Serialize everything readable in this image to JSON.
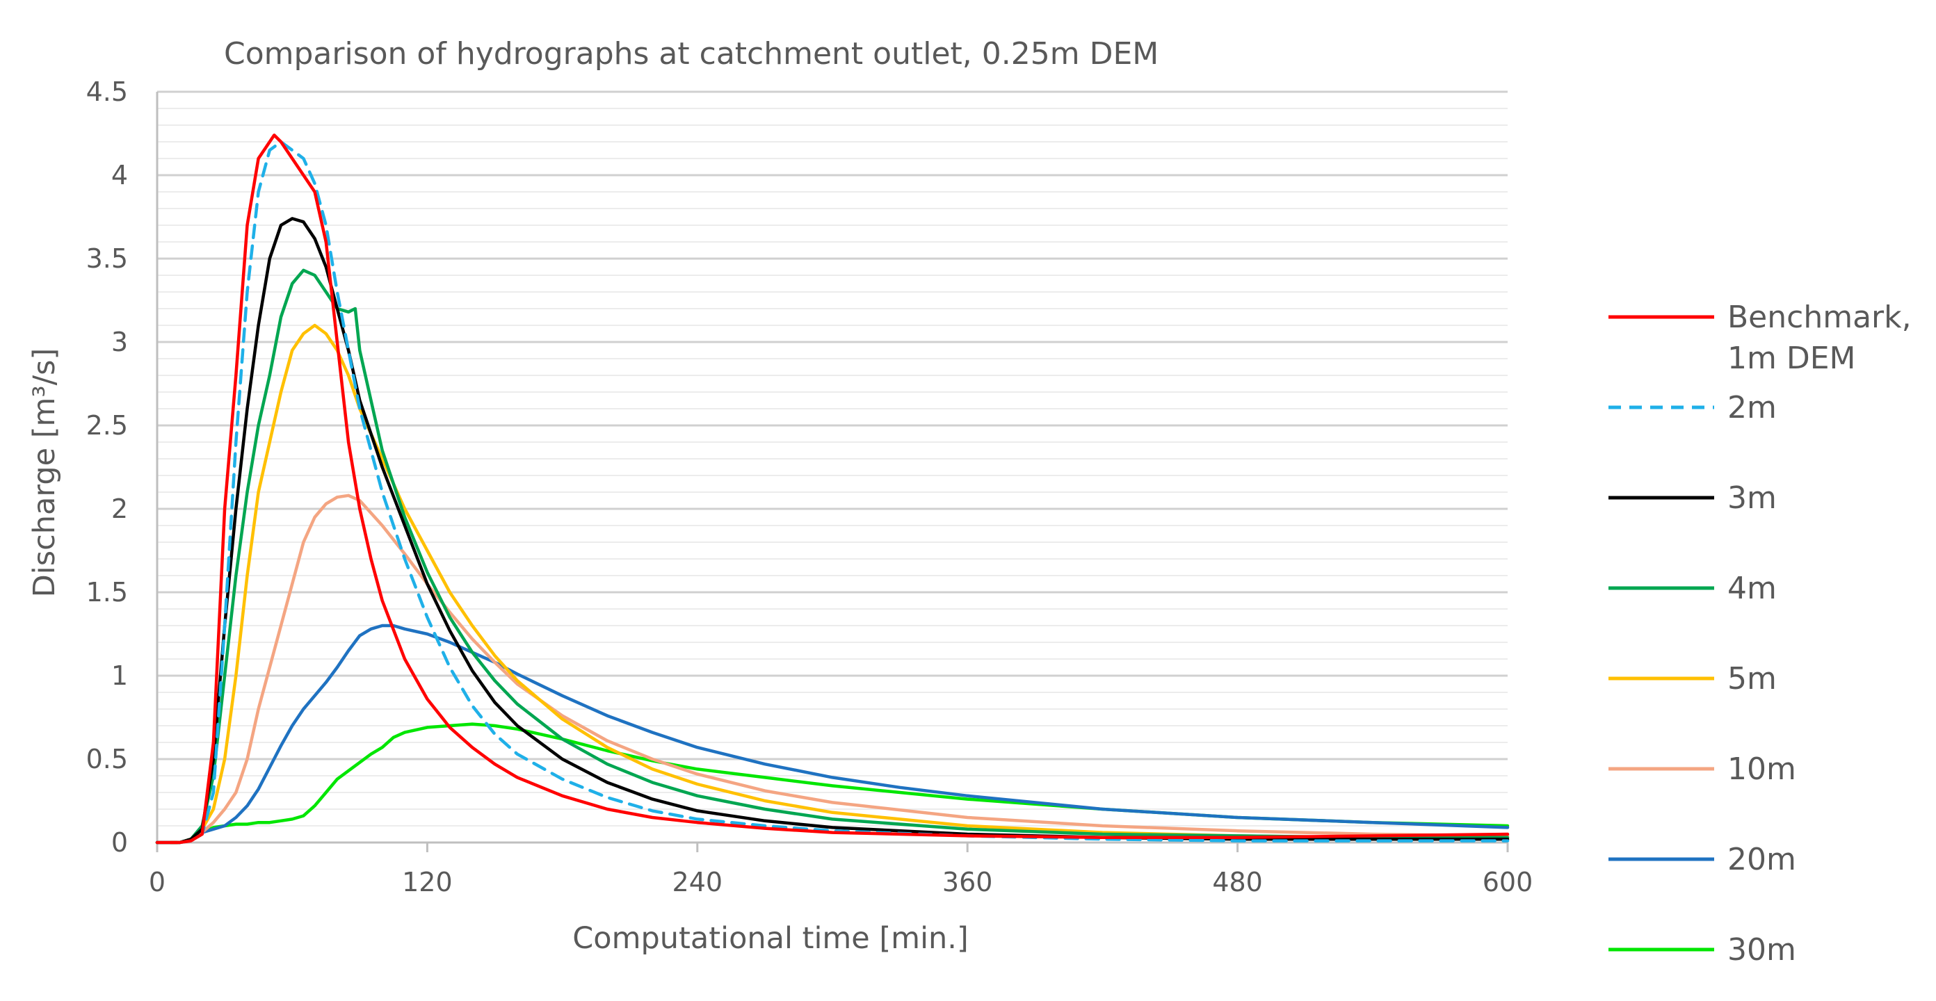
{
  "chart_data": {
    "type": "line",
    "title": "Comparison of hydrographs at catchment outlet, 0.25m DEM",
    "xlabel": "Computational time [min.]",
    "ylabel": "Discharge [m³/s]",
    "xlim": [
      0,
      600
    ],
    "ylim": [
      0,
      4.5
    ],
    "xticks": [
      "0",
      "120",
      "240",
      "360",
      "480",
      "600"
    ],
    "yticks": [
      "0",
      "0.5",
      "1",
      "1.5",
      "2",
      "2.5",
      "3",
      "3.5",
      "4",
      "4.5"
    ],
    "grid": "horizontal major and minor",
    "legend": "right",
    "series": [
      {
        "name": "Benchmark, 1m DEM",
        "color": "#FF0000",
        "dash": "solid",
        "points": [
          [
            0,
            0
          ],
          [
            10,
            0
          ],
          [
            15,
            0.01
          ],
          [
            20,
            0.05
          ],
          [
            25,
            0.6
          ],
          [
            30,
            2.0
          ],
          [
            35,
            2.8
          ],
          [
            40,
            3.7
          ],
          [
            45,
            4.1
          ],
          [
            50,
            4.2
          ],
          [
            52,
            4.24
          ],
          [
            55,
            4.2
          ],
          [
            60,
            4.1
          ],
          [
            65,
            4.0
          ],
          [
            70,
            3.9
          ],
          [
            75,
            3.6
          ],
          [
            80,
            3.0
          ],
          [
            85,
            2.4
          ],
          [
            90,
            2.0
          ],
          [
            95,
            1.7
          ],
          [
            100,
            1.45
          ],
          [
            110,
            1.1
          ],
          [
            120,
            0.86
          ],
          [
            130,
            0.69
          ],
          [
            140,
            0.57
          ],
          [
            150,
            0.47
          ],
          [
            160,
            0.39
          ],
          [
            180,
            0.28
          ],
          [
            200,
            0.2
          ],
          [
            220,
            0.15
          ],
          [
            240,
            0.12
          ],
          [
            270,
            0.085
          ],
          [
            300,
            0.06
          ],
          [
            360,
            0.04
          ],
          [
            420,
            0.03
          ],
          [
            480,
            0.03
          ],
          [
            540,
            0.04
          ],
          [
            600,
            0.05
          ]
        ]
      },
      {
        "name": "2m",
        "color": "#1FB0E8",
        "dash": "dashed",
        "points": [
          [
            0,
            0
          ],
          [
            10,
            0
          ],
          [
            15,
            0.01
          ],
          [
            20,
            0.05
          ],
          [
            25,
            0.3
          ],
          [
            30,
            1.3
          ],
          [
            35,
            2.4
          ],
          [
            40,
            3.3
          ],
          [
            45,
            3.9
          ],
          [
            50,
            4.15
          ],
          [
            55,
            4.2
          ],
          [
            60,
            4.15
          ],
          [
            65,
            4.1
          ],
          [
            70,
            3.95
          ],
          [
            75,
            3.7
          ],
          [
            80,
            3.3
          ],
          [
            90,
            2.6
          ],
          [
            100,
            2.1
          ],
          [
            110,
            1.7
          ],
          [
            120,
            1.35
          ],
          [
            130,
            1.05
          ],
          [
            140,
            0.82
          ],
          [
            150,
            0.65
          ],
          [
            160,
            0.53
          ],
          [
            180,
            0.38
          ],
          [
            200,
            0.27
          ],
          [
            220,
            0.19
          ],
          [
            240,
            0.14
          ],
          [
            270,
            0.1
          ],
          [
            300,
            0.07
          ],
          [
            360,
            0.04
          ],
          [
            420,
            0.02
          ],
          [
            480,
            0.01
          ],
          [
            540,
            0.01
          ],
          [
            600,
            0.01
          ]
        ]
      },
      {
        "name": "3m",
        "color": "#000000",
        "dash": "solid",
        "points": [
          [
            0,
            0
          ],
          [
            10,
            0
          ],
          [
            15,
            0.02
          ],
          [
            20,
            0.08
          ],
          [
            25,
            0.5
          ],
          [
            30,
            1.3
          ],
          [
            35,
            2.0
          ],
          [
            40,
            2.6
          ],
          [
            45,
            3.1
          ],
          [
            50,
            3.5
          ],
          [
            55,
            3.7
          ],
          [
            60,
            3.74
          ],
          [
            65,
            3.72
          ],
          [
            70,
            3.62
          ],
          [
            75,
            3.45
          ],
          [
            80,
            3.2
          ],
          [
            85,
            2.95
          ],
          [
            90,
            2.65
          ],
          [
            100,
            2.25
          ],
          [
            110,
            1.9
          ],
          [
            120,
            1.55
          ],
          [
            130,
            1.27
          ],
          [
            140,
            1.03
          ],
          [
            150,
            0.84
          ],
          [
            160,
            0.7
          ],
          [
            180,
            0.5
          ],
          [
            200,
            0.36
          ],
          [
            220,
            0.26
          ],
          [
            240,
            0.19
          ],
          [
            270,
            0.13
          ],
          [
            300,
            0.09
          ],
          [
            360,
            0.05
          ],
          [
            420,
            0.03
          ],
          [
            480,
            0.02
          ],
          [
            540,
            0.02
          ],
          [
            600,
            0.02
          ]
        ]
      },
      {
        "name": "4m",
        "color": "#00A651",
        "dash": "solid",
        "points": [
          [
            0,
            0
          ],
          [
            10,
            0
          ],
          [
            15,
            0.02
          ],
          [
            20,
            0.1
          ],
          [
            25,
            0.4
          ],
          [
            30,
            1.0
          ],
          [
            35,
            1.6
          ],
          [
            40,
            2.1
          ],
          [
            45,
            2.5
          ],
          [
            50,
            2.8
          ],
          [
            55,
            3.15
          ],
          [
            60,
            3.35
          ],
          [
            65,
            3.43
          ],
          [
            70,
            3.4
          ],
          [
            75,
            3.3
          ],
          [
            80,
            3.2
          ],
          [
            85,
            3.18
          ],
          [
            88,
            3.2
          ],
          [
            90,
            2.95
          ],
          [
            95,
            2.65
          ],
          [
            100,
            2.35
          ],
          [
            110,
            1.95
          ],
          [
            120,
            1.62
          ],
          [
            130,
            1.35
          ],
          [
            140,
            1.14
          ],
          [
            150,
            0.97
          ],
          [
            160,
            0.83
          ],
          [
            180,
            0.62
          ],
          [
            200,
            0.47
          ],
          [
            220,
            0.36
          ],
          [
            240,
            0.28
          ],
          [
            270,
            0.2
          ],
          [
            300,
            0.14
          ],
          [
            360,
            0.08
          ],
          [
            420,
            0.05
          ],
          [
            480,
            0.04
          ],
          [
            540,
            0.03
          ],
          [
            600,
            0.03
          ]
        ]
      },
      {
        "name": "5m",
        "color": "#FFC000",
        "dash": "solid",
        "points": [
          [
            0,
            0
          ],
          [
            10,
            0
          ],
          [
            15,
            0.02
          ],
          [
            20,
            0.08
          ],
          [
            25,
            0.2
          ],
          [
            30,
            0.5
          ],
          [
            35,
            1.0
          ],
          [
            40,
            1.6
          ],
          [
            45,
            2.1
          ],
          [
            50,
            2.4
          ],
          [
            55,
            2.7
          ],
          [
            60,
            2.95
          ],
          [
            65,
            3.05
          ],
          [
            70,
            3.1
          ],
          [
            75,
            3.05
          ],
          [
            80,
            2.95
          ],
          [
            85,
            2.8
          ],
          [
            90,
            2.6
          ],
          [
            100,
            2.3
          ],
          [
            110,
            2.0
          ],
          [
            120,
            1.75
          ],
          [
            130,
            1.5
          ],
          [
            140,
            1.3
          ],
          [
            150,
            1.12
          ],
          [
            160,
            0.97
          ],
          [
            180,
            0.74
          ],
          [
            200,
            0.57
          ],
          [
            220,
            0.44
          ],
          [
            240,
            0.35
          ],
          [
            270,
            0.25
          ],
          [
            300,
            0.18
          ],
          [
            360,
            0.1
          ],
          [
            420,
            0.06
          ],
          [
            480,
            0.04
          ],
          [
            540,
            0.03
          ],
          [
            600,
            0.03
          ]
        ]
      },
      {
        "name": "10m",
        "color": "#F4A582",
        "dash": "solid",
        "points": [
          [
            0,
            0
          ],
          [
            10,
            0
          ],
          [
            15,
            0.02
          ],
          [
            20,
            0.06
          ],
          [
            25,
            0.12
          ],
          [
            30,
            0.2
          ],
          [
            35,
            0.3
          ],
          [
            40,
            0.5
          ],
          [
            45,
            0.8
          ],
          [
            50,
            1.05
          ],
          [
            55,
            1.3
          ],
          [
            60,
            1.55
          ],
          [
            65,
            1.8
          ],
          [
            70,
            1.95
          ],
          [
            75,
            2.03
          ],
          [
            80,
            2.07
          ],
          [
            85,
            2.08
          ],
          [
            90,
            2.05
          ],
          [
            100,
            1.9
          ],
          [
            110,
            1.73
          ],
          [
            120,
            1.55
          ],
          [
            130,
            1.38
          ],
          [
            140,
            1.22
          ],
          [
            150,
            1.08
          ],
          [
            160,
            0.95
          ],
          [
            180,
            0.76
          ],
          [
            200,
            0.61
          ],
          [
            220,
            0.5
          ],
          [
            240,
            0.41
          ],
          [
            270,
            0.31
          ],
          [
            300,
            0.24
          ],
          [
            360,
            0.15
          ],
          [
            420,
            0.1
          ],
          [
            480,
            0.07
          ],
          [
            540,
            0.05
          ],
          [
            600,
            0.04
          ]
        ]
      },
      {
        "name": "20m",
        "color": "#1F72C1",
        "dash": "solid",
        "points": [
          [
            0,
            0
          ],
          [
            10,
            0
          ],
          [
            15,
            0.02
          ],
          [
            20,
            0.06
          ],
          [
            25,
            0.08
          ],
          [
            30,
            0.1
          ],
          [
            35,
            0.15
          ],
          [
            40,
            0.22
          ],
          [
            45,
            0.32
          ],
          [
            50,
            0.45
          ],
          [
            55,
            0.58
          ],
          [
            60,
            0.7
          ],
          [
            65,
            0.8
          ],
          [
            70,
            0.88
          ],
          [
            75,
            0.96
          ],
          [
            80,
            1.05
          ],
          [
            85,
            1.15
          ],
          [
            90,
            1.24
          ],
          [
            95,
            1.28
          ],
          [
            100,
            1.3
          ],
          [
            105,
            1.3
          ],
          [
            110,
            1.28
          ],
          [
            120,
            1.25
          ],
          [
            130,
            1.2
          ],
          [
            140,
            1.14
          ],
          [
            150,
            1.08
          ],
          [
            160,
            1.01
          ],
          [
            180,
            0.88
          ],
          [
            200,
            0.76
          ],
          [
            220,
            0.66
          ],
          [
            240,
            0.57
          ],
          [
            270,
            0.47
          ],
          [
            300,
            0.39
          ],
          [
            330,
            0.33
          ],
          [
            360,
            0.28
          ],
          [
            420,
            0.2
          ],
          [
            480,
            0.15
          ],
          [
            540,
            0.12
          ],
          [
            600,
            0.09
          ]
        ]
      },
      {
        "name": "30m",
        "color": "#00E600",
        "dash": "solid",
        "points": [
          [
            0,
            0
          ],
          [
            10,
            0
          ],
          [
            15,
            0.02
          ],
          [
            20,
            0.06
          ],
          [
            25,
            0.09
          ],
          [
            30,
            0.1
          ],
          [
            35,
            0.11
          ],
          [
            40,
            0.11
          ],
          [
            45,
            0.12
          ],
          [
            50,
            0.12
          ],
          [
            55,
            0.13
          ],
          [
            60,
            0.14
          ],
          [
            65,
            0.16
          ],
          [
            70,
            0.22
          ],
          [
            75,
            0.3
          ],
          [
            80,
            0.38
          ],
          [
            85,
            0.43
          ],
          [
            90,
            0.48
          ],
          [
            95,
            0.53
          ],
          [
            100,
            0.57
          ],
          [
            105,
            0.63
          ],
          [
            110,
            0.66
          ],
          [
            120,
            0.69
          ],
          [
            130,
            0.7
          ],
          [
            140,
            0.71
          ],
          [
            150,
            0.7
          ],
          [
            160,
            0.68
          ],
          [
            180,
            0.62
          ],
          [
            200,
            0.55
          ],
          [
            220,
            0.49
          ],
          [
            240,
            0.44
          ],
          [
            270,
            0.39
          ],
          [
            300,
            0.34
          ],
          [
            330,
            0.3
          ],
          [
            360,
            0.26
          ],
          [
            420,
            0.2
          ],
          [
            480,
            0.15
          ],
          [
            540,
            0.12
          ],
          [
            600,
            0.1
          ]
        ]
      }
    ]
  }
}
